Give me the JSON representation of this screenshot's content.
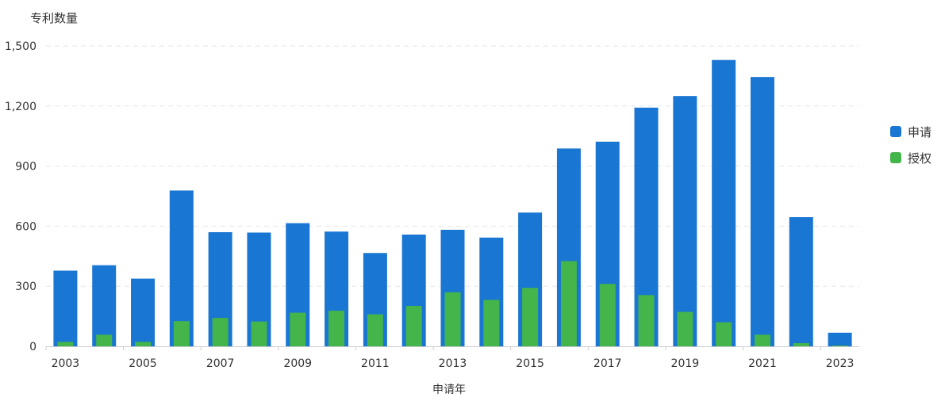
{
  "chart_data": {
    "type": "bar",
    "ylabel": "专利数量",
    "xlabel": "申请年",
    "categories": [
      "2003",
      "2004",
      "2005",
      "2006",
      "2007",
      "2008",
      "2009",
      "2010",
      "2011",
      "2012",
      "2013",
      "2014",
      "2015",
      "2016",
      "2017",
      "2018",
      "2019",
      "2020",
      "2021",
      "2022",
      "2023"
    ],
    "x_tick_labels": [
      "2003",
      "2005",
      "2007",
      "2009",
      "2011",
      "2013",
      "2015",
      "2017",
      "2019",
      "2021",
      "2023"
    ],
    "y_tick_labels": [
      "0",
      "300",
      "600",
      "900",
      "1,200",
      "1,500"
    ],
    "ylim": [
      0,
      1500
    ],
    "grid": true,
    "legend_position": "right",
    "series": [
      {
        "name": "申请",
        "color": "#1976d2",
        "values": [
          378,
          405,
          338,
          778,
          570,
          568,
          615,
          573,
          466,
          558,
          582,
          543,
          668,
          988,
          1022,
          1192,
          1250,
          1430,
          1345,
          645,
          68
        ]
      },
      {
        "name": "授权",
        "color": "#43b54a",
        "values": [
          22,
          58,
          22,
          126,
          142,
          124,
          168,
          178,
          160,
          202,
          270,
          232,
          292,
          426,
          312,
          256,
          172,
          120,
          58,
          16,
          4
        ]
      }
    ]
  }
}
